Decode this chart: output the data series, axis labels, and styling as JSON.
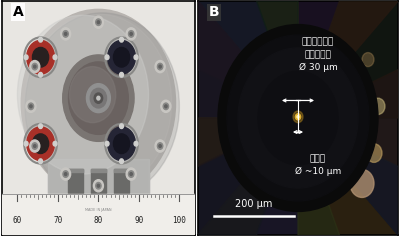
{
  "fig_width": 4.0,
  "fig_height": 2.36,
  "dpi": 100,
  "border_color": "#000000",
  "bg_color": "#ffffff",
  "label_A": "A",
  "label_B": "B",
  "label_fontsize": 10,
  "annotation_color": "#ffffff",
  "annotation_fontsize": 6.5,
  "scale_bar_label": "200 μm",
  "scale_bar_fontsize": 7,
  "diamond_label": "ダイヤモンド\nキュレット\nØ 30 μm",
  "sample_label": "試料部\nØ ~10 μm",
  "ruler_numbers": [
    "60",
    "70",
    "80",
    "90",
    "100"
  ],
  "ruler_fontsize": 5.5
}
